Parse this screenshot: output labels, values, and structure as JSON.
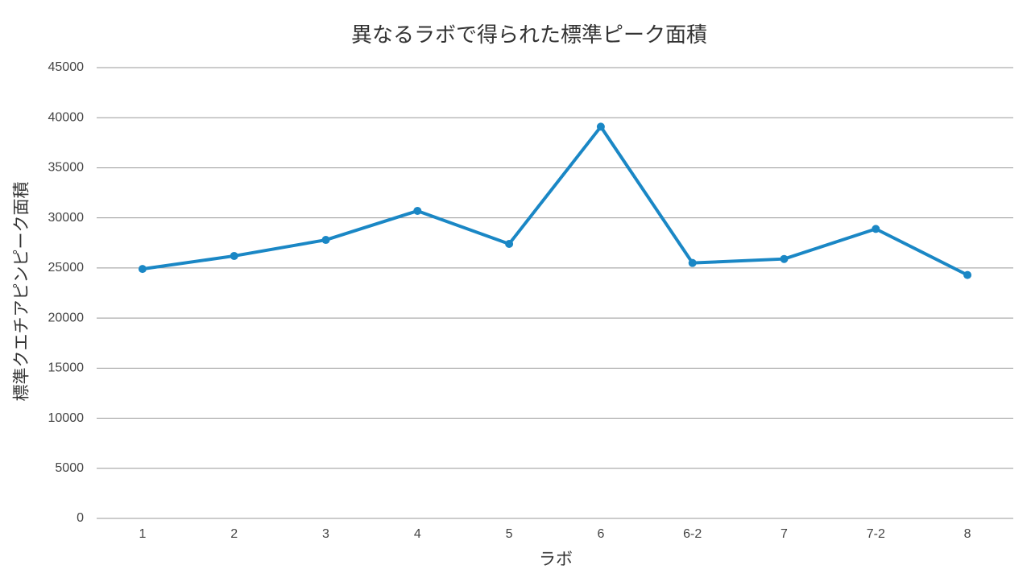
{
  "chart_data": {
    "type": "line",
    "title": "異なるラボで得られた標準ピーク面積",
    "x_label": "ラボ",
    "y_label": "標準クエチアピンピーク面積",
    "categories": [
      "1",
      "2",
      "3",
      "4",
      "5",
      "6",
      "6-2",
      "7",
      "7-2",
      "8"
    ],
    "series": [
      {
        "name": "標準ピーク面積",
        "color": "#1a87c5",
        "values": [
          24900,
          26200,
          27800,
          30700,
          27400,
          39100,
          25500,
          25900,
          28900,
          24300
        ]
      }
    ],
    "ylim": [
      0,
      45000
    ],
    "yticks": [
      0,
      5000,
      10000,
      15000,
      20000,
      25000,
      30000,
      35000,
      40000,
      45000
    ],
    "grid": true
  }
}
